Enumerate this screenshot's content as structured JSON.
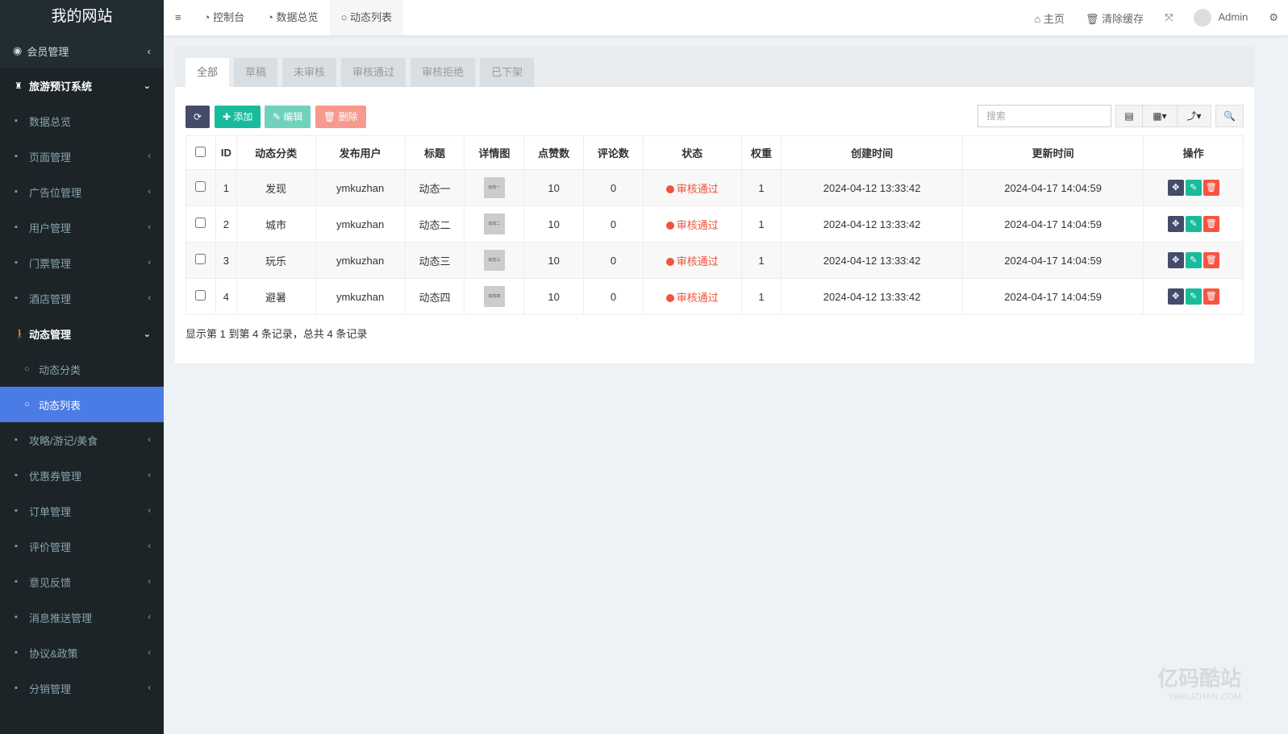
{
  "sidebar": {
    "logo": "我的网站",
    "member": "会员管理",
    "system": "旅游预订系统",
    "items": [
      {
        "label": "数据总览",
        "icon": "dashboard-icon",
        "ch": ""
      },
      {
        "label": "页面管理",
        "icon": "bookmark-icon",
        "ch": "‹"
      },
      {
        "label": "广告位管理",
        "icon": "card-icon",
        "ch": "‹"
      },
      {
        "label": "用户管理",
        "icon": "user-icon",
        "ch": "‹"
      },
      {
        "label": "门票管理",
        "icon": "ticket-icon",
        "ch": "‹"
      },
      {
        "label": "酒店管理",
        "icon": "building-icon",
        "ch": "‹"
      }
    ],
    "dyn": "动态管理",
    "subs": [
      "动态分类",
      "动态列表"
    ],
    "items2": [
      {
        "label": "攻略/游记/美食",
        "icon": "camera-icon"
      },
      {
        "label": "优惠券管理",
        "icon": "visa-icon"
      },
      {
        "label": "订单管理",
        "icon": "list-icon"
      },
      {
        "label": "评价管理",
        "icon": "comment-icon"
      },
      {
        "label": "意见反馈",
        "icon": "feedback-icon"
      },
      {
        "label": "消息推送管理",
        "icon": "list-icon"
      },
      {
        "label": "协议&政策",
        "icon": "file-icon"
      },
      {
        "label": "分销管理",
        "icon": "list-icon"
      }
    ]
  },
  "topbar": {
    "nav": [
      "控制台",
      "数据总览",
      "动态列表"
    ],
    "home": "主页",
    "clear": "清除缓存",
    "user": "Admin"
  },
  "tabs": [
    "全部",
    "草稿",
    "未审核",
    "审核通过",
    "审核拒绝",
    "已下架"
  ],
  "toolbar": {
    "add": "添加",
    "edit": "编辑",
    "del": "删除",
    "search_placeholder": "搜索"
  },
  "table": {
    "headers": [
      "ID",
      "动态分类",
      "发布用户",
      "标题",
      "详情图",
      "点赞数",
      "评论数",
      "状态",
      "权重",
      "创建时间",
      "更新时间",
      "操作"
    ],
    "rows": [
      [
        "1",
        "发现",
        "ymkuzhan",
        "动态一",
        "动态一",
        "10",
        "0",
        "审核通过",
        "1",
        "2024-04-12 13:33:42",
        "2024-04-17 14:04:59"
      ],
      [
        "2",
        "城市",
        "ymkuzhan",
        "动态二",
        "动态二",
        "10",
        "0",
        "审核通过",
        "1",
        "2024-04-12 13:33:42",
        "2024-04-17 14:04:59"
      ],
      [
        "3",
        "玩乐",
        "ymkuzhan",
        "动态三",
        "动态三",
        "10",
        "0",
        "审核通过",
        "1",
        "2024-04-12 13:33:42",
        "2024-04-17 14:04:59"
      ],
      [
        "4",
        "避暑",
        "ymkuzhan",
        "动态四",
        "动态四",
        "10",
        "0",
        "审核通过",
        "1",
        "2024-04-12 13:33:42",
        "2024-04-17 14:04:59"
      ]
    ]
  },
  "footer": "显示第 1 到第 4 条记录，总共 4 条记录",
  "watermark": {
    "cn": "亿码酷站",
    "en": "YMKUZHAN.COM"
  }
}
